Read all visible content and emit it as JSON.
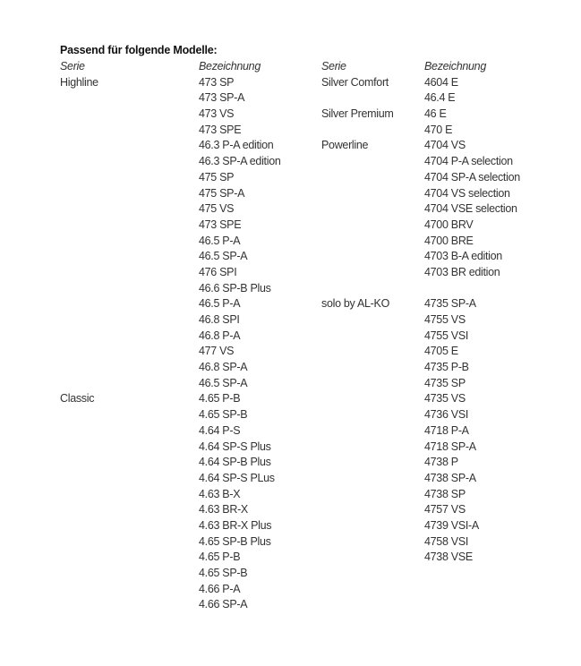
{
  "title": "Passend für folgende Modelle:",
  "headers": {
    "serie": "Serie",
    "bezeichnung": "Bezeichnung"
  },
  "left_groups": [
    {
      "serie": "Highline",
      "models": [
        "473 SP",
        "473 SP-A",
        "473 VS",
        "473 SPE",
        "46.3 P-A edition",
        "46.3 SP-A edition",
        "475 SP",
        "475 SP-A",
        "475 VS",
        "473 SPE",
        "46.5 P-A",
        "46.5 SP-A",
        "476 SPI",
        "46.6 SP-B Plus",
        "46.5 P-A",
        "46.8 SPI",
        "46.8 P-A",
        "477 VS",
        "46.8 SP-A",
        "46.5 SP-A"
      ]
    },
    {
      "serie": "Classic",
      "models": [
        "4.65 P-B",
        "4.65 SP-B",
        "4.64 P-S",
        "4.64 SP-S Plus",
        "4.64 SP-B Plus",
        "4.64 SP-S PLus",
        "4.63 B-X",
        "4.63 BR-X",
        "4.63 BR-X Plus",
        "4.65 SP-B Plus",
        "4.65 P-B",
        "4.65 SP-B",
        "4.66 P-A",
        "4.66 SP-A"
      ]
    }
  ],
  "right_groups": [
    {
      "serie": "Silver Comfort",
      "models": [
        "4604 E",
        "46.4 E"
      ]
    },
    {
      "serie": "Silver Premium",
      "models": [
        "46 E",
        "470 E"
      ]
    },
    {
      "serie": "Powerline",
      "models": [
        "4704 VS",
        "4704 P-A selection",
        "4704 SP-A selection",
        "4704 VS selection",
        "4704 VSE selection",
        "4700 BRV",
        "4700 BRE",
        "4703 B-A edition",
        "4703 BR edition"
      ],
      "gap_after": true
    },
    {
      "serie": "solo by AL-KO",
      "models": [
        "4735 SP-A",
        "4755 VS",
        "4755 VSI",
        "4705 E",
        "4735 P-B",
        "4735 SP",
        "4735 VS",
        "4736 VSI",
        "4718 P-A",
        "4718 SP-A",
        "4738 P",
        "4738 SP-A",
        "4738 SP",
        "4757 VS",
        "4739 VSI-A",
        "4758 VSI",
        "4738 VSE"
      ]
    }
  ]
}
